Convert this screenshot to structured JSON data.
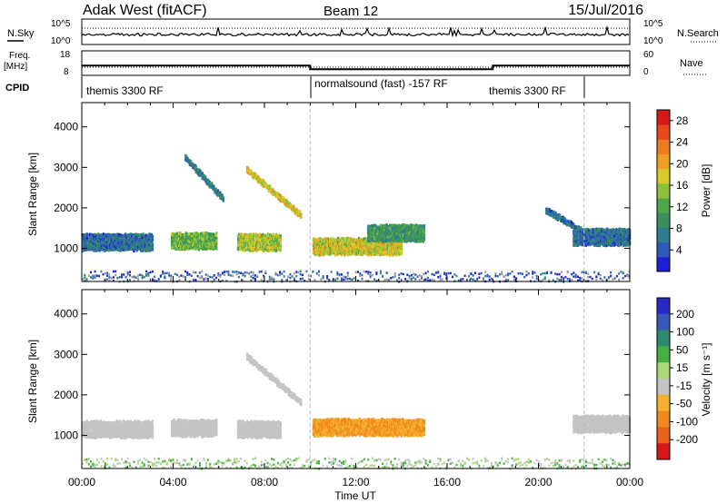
{
  "header": {
    "station": "Adak West (fitACF)",
    "beam": "Beam 12",
    "date": "15/Jul/2016"
  },
  "noise_panel": {
    "left_label": "N.Sky",
    "right_label": "N.Search",
    "ticks": [
      "10^5",
      "10^0"
    ]
  },
  "freq_panel": {
    "left_label_1": "Freq.",
    "left_label_2": "[MHz]",
    "left_ticks": [
      "18",
      "8"
    ],
    "right_label": "Nave",
    "right_ticks": [
      "60",
      "0"
    ]
  },
  "cpid_panel": {
    "label": "CPID",
    "segments": [
      {
        "name": "themis 3300 RF",
        "start_hour": 0.0,
        "end_hour": 10.0
      },
      {
        "name": "normalsound (fast) -157 RF",
        "start_hour": 10.0,
        "end_hour": 18.0
      },
      {
        "name": "themis 3300 RF",
        "start_hour": 18.0,
        "end_hour": 22.0
      }
    ],
    "freq_levels_mhz": [
      {
        "start_hour": 0.0,
        "end_hour": 10.0,
        "value": 12.0
      },
      {
        "start_hour": 10.0,
        "end_hour": 18.0,
        "value": 10.5
      },
      {
        "start_hour": 18.0,
        "end_hour": 24.0,
        "value": 12.0
      }
    ]
  },
  "chart_data": [
    {
      "type": "heatmap",
      "title": "Power",
      "xlabel": "Time UT",
      "ylabel": "Slant Range [km]",
      "x_ticks": [
        "00:00",
        "04:00",
        "08:00",
        "12:00",
        "16:00",
        "20:00",
        "00:00"
      ],
      "x_range_hours": [
        0,
        24
      ],
      "y_ticks": [
        1000,
        2000,
        3000,
        4000
      ],
      "y_range_km": [
        180,
        4600
      ],
      "colorbar": {
        "label": "Power [dB]",
        "ticks": [
          4,
          8,
          12,
          16,
          20,
          24,
          28
        ],
        "range": [
          0,
          30
        ],
        "colors": [
          "#1f1fd8",
          "#2c5ab8",
          "#2e7d8c",
          "#3b8f5e",
          "#4fa54a",
          "#8cc23a",
          "#d9c92a",
          "#f0a020",
          "#ef7d1e",
          "#e8481c",
          "#d81818"
        ]
      },
      "features": [
        {
          "type": "band",
          "t_start": 0.0,
          "t_end": 3.1,
          "range_km": 1200,
          "power_db": 6
        },
        {
          "type": "band",
          "t_start": 3.9,
          "t_end": 5.9,
          "range_km": 1230,
          "power_db": 13
        },
        {
          "type": "band",
          "t_start": 6.8,
          "t_end": 8.7,
          "range_km": 1200,
          "power_db": 16
        },
        {
          "type": "band",
          "t_start": 10.1,
          "t_end": 14.0,
          "range_km": 1100,
          "power_db": 17
        },
        {
          "type": "band",
          "t_start": 12.5,
          "t_end": 15.0,
          "range_km": 1430,
          "power_db": 10
        },
        {
          "type": "band",
          "t_start": 21.5,
          "t_end": 24.0,
          "range_km": 1330,
          "power_db": 6
        },
        {
          "type": "arc",
          "t_start": 4.5,
          "t_end": 6.2,
          "range_start_km": 3300,
          "range_end_km": 2250,
          "power_db": 7
        },
        {
          "type": "arc",
          "t_start": 7.2,
          "t_end": 9.6,
          "range_start_km": 3000,
          "range_end_km": 1850,
          "power_db": 18
        },
        {
          "type": "arc",
          "t_start": 20.3,
          "t_end": 22.4,
          "range_start_km": 2000,
          "range_end_km": 1300,
          "power_db": 6
        }
      ]
    },
    {
      "type": "heatmap",
      "title": "Velocity",
      "xlabel": "Time UT",
      "ylabel": "Slant Range [km]",
      "x_ticks": [
        "00:00",
        "04:00",
        "08:00",
        "12:00",
        "16:00",
        "20:00",
        "00:00"
      ],
      "x_range_hours": [
        0,
        24
      ],
      "y_ticks": [
        1000,
        2000,
        3000,
        4000
      ],
      "y_range_km": [
        180,
        4600
      ],
      "colorbar": {
        "label": "Velocity [m s⁻¹]",
        "ticks": [
          200,
          100,
          50,
          15,
          -15,
          -50,
          -100,
          -200
        ],
        "colors": [
          "#2828c8",
          "#3858b8",
          "#2e8a6e",
          "#44b044",
          "#a8d878",
          "#c4c4c4",
          "#f5b030",
          "#f08a1e",
          "#e8601a",
          "#d81818"
        ]
      },
      "features": [
        {
          "type": "band",
          "t_start": 0.0,
          "t_end": 3.1,
          "range_km": 1200,
          "velocity": 0
        },
        {
          "type": "band",
          "t_start": 3.9,
          "t_end": 5.9,
          "range_km": 1230,
          "velocity": 0
        },
        {
          "type": "band",
          "t_start": 6.8,
          "t_end": 8.7,
          "range_km": 1200,
          "velocity": 0
        },
        {
          "type": "band",
          "t_start": 10.1,
          "t_end": 15.0,
          "range_km": 1250,
          "velocity": -40
        },
        {
          "type": "band",
          "t_start": 21.5,
          "t_end": 24.0,
          "range_km": 1330,
          "velocity": 0
        },
        {
          "type": "arc",
          "t_start": 7.2,
          "t_end": 9.6,
          "range_start_km": 3000,
          "range_end_km": 1850,
          "velocity": 0
        }
      ]
    }
  ]
}
